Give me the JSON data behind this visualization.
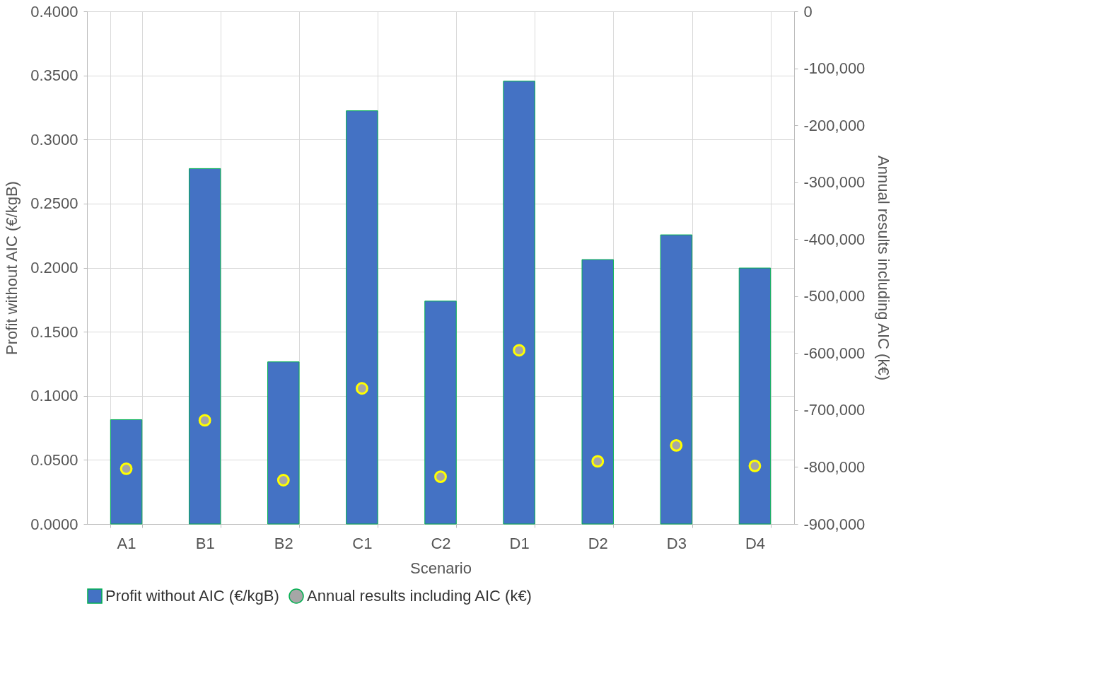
{
  "chart_data": {
    "type": "bar",
    "xlabel": "Scenario",
    "ylabel": "Profit without AIC (€/kgB)",
    "y2label": "Annual results including AIC (k€)",
    "categories": [
      "A1",
      "B1",
      "B2",
      "C1",
      "C2",
      "D1",
      "D2",
      "D3",
      "D4"
    ],
    "series": [
      {
        "name": "Profit without AIC (€/kgB)",
        "color": "#4472c4",
        "values": [
          0.0814,
          0.2773,
          0.1265,
          0.3224,
          0.1739,
          0.3455,
          0.2063,
          0.2256,
          0.1997
        ]
      },
      {
        "name": "Annual results including AIC (k€)",
        "type": "scatter",
        "axis": "y2",
        "color": "#a6a6a6",
        "values": [
          -803000,
          -718000,
          -823000,
          -662000,
          -817000,
          -595000,
          -790000,
          -762000,
          -798000
        ]
      }
    ],
    "ylim": [
      0,
      0.4
    ],
    "yticks": [
      {
        "value": 0,
        "label": "0.0000"
      },
      {
        "value": 0.05,
        "label": "0.0500"
      },
      {
        "value": 0.1,
        "label": "0.1000"
      },
      {
        "value": 0.15,
        "label": "0.1500"
      },
      {
        "value": 0.2,
        "label": "0.2000"
      },
      {
        "value": 0.25,
        "label": "0.2500"
      },
      {
        "value": 0.3,
        "label": "0.3000"
      },
      {
        "value": 0.35,
        "label": "0.3500"
      },
      {
        "value": 0.4,
        "label": "0.4000"
      }
    ],
    "y2lim": [
      -900000,
      0
    ],
    "y2ticks": [
      {
        "value": -900000,
        "label": "-900,000"
      },
      {
        "value": -800000,
        "label": "-800,000"
      },
      {
        "value": -700000,
        "label": "-700,000"
      },
      {
        "value": -600000,
        "label": "-600,000"
      },
      {
        "value": -500000,
        "label": "-500,000"
      },
      {
        "value": -400000,
        "label": "-400,000"
      },
      {
        "value": -300000,
        "label": "-300,000"
      },
      {
        "value": -200000,
        "label": "-200,000"
      },
      {
        "value": -100000,
        "label": "-100,000"
      },
      0
    ],
    "grid": true,
    "legend": "bottom",
    "marker": "circle"
  }
}
